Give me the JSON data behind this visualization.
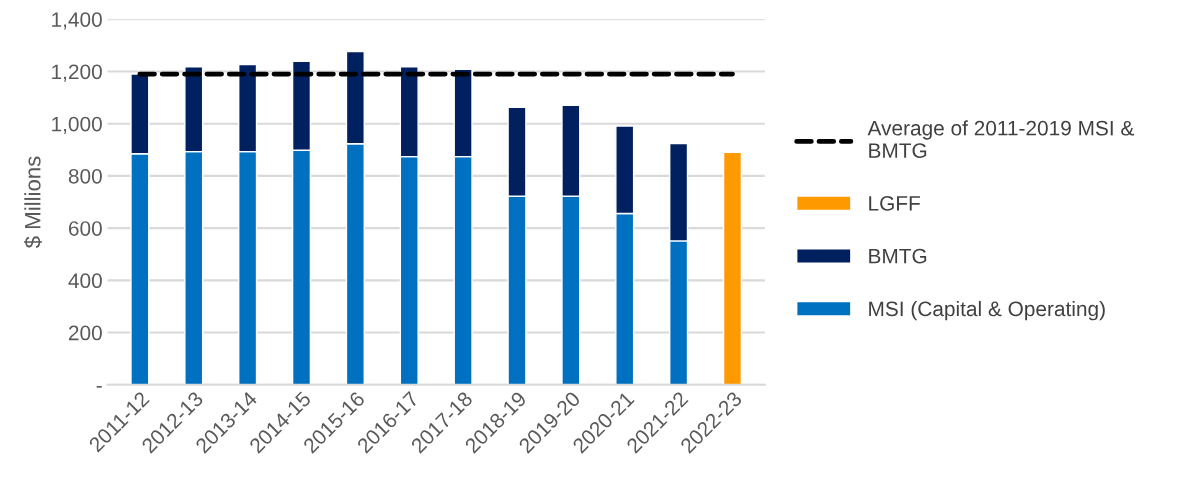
{
  "chart_data": {
    "type": "bar",
    "stacked": true,
    "ylabel": "$ Millions",
    "categories": [
      "2011-12",
      "2012-13",
      "2013-14",
      "2014-15",
      "2015-16",
      "2016-17",
      "2017-18",
      "2018-19",
      "2019-20",
      "2020-21",
      "2021-22",
      "2022-23"
    ],
    "series": [
      {
        "name": "MSI (Capital & Operating)",
        "color": "#0070c0",
        "values": [
          885,
          893,
          893,
          898,
          923,
          874,
          874,
          722,
          722,
          656,
          551,
          null
        ]
      },
      {
        "name": "BMTG",
        "color": "#002060",
        "values": [
          305,
          325,
          333,
          341,
          353,
          344,
          334,
          341,
          348,
          335,
          373,
          null
        ]
      },
      {
        "name": "LGFF",
        "color": "#ff9900",
        "values": [
          null,
          null,
          null,
          null,
          null,
          null,
          null,
          null,
          null,
          null,
          null,
          890
        ]
      },
      {
        "name": "Average of 2011-2019 MSI & BMTG",
        "type": "line",
        "line_style": "dashed",
        "color": "#000000",
        "values": [
          1190,
          1190,
          1190,
          1190,
          1190,
          1190,
          1190,
          1190,
          1190,
          1190,
          1190,
          1190
        ]
      }
    ],
    "ylim": [
      0,
      1400
    ],
    "yticks": [
      {
        "value": 0,
        "label": "-"
      },
      {
        "value": 200,
        "label": "200"
      },
      {
        "value": 400,
        "label": "400"
      },
      {
        "value": 600,
        "label": "600"
      },
      {
        "value": 800,
        "label": "800"
      },
      {
        "value": 1000,
        "label": "1,000"
      },
      {
        "value": 1200,
        "label": "1,200"
      },
      {
        "value": 1400,
        "label": "1,400"
      }
    ],
    "grid": "y",
    "legend": "right"
  }
}
